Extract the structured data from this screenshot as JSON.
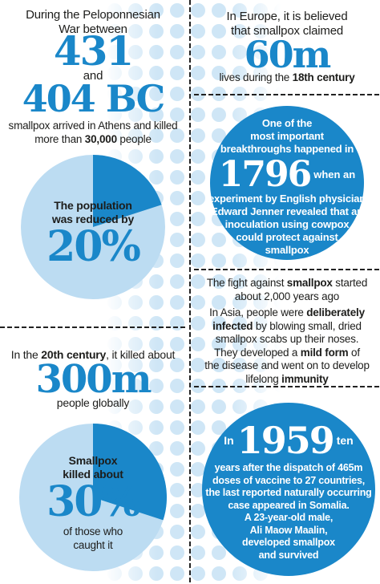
{
  "left": {
    "war_intro": [
      [
        "During the Peloponnesian"
      ],
      [
        "War between"
      ]
    ],
    "year1": "431",
    "and": "and",
    "year2": "404 BC",
    "athens": [
      [
        "smallpox arrived in Athens and killed"
      ],
      [
        "more than ",
        {
          "b": "30,000"
        },
        " people"
      ]
    ],
    "pie1": {
      "caption": [
        [
          "The population"
        ],
        [
          "was reduced by"
        ]
      ],
      "value": 20,
      "label": "20%"
    },
    "century": [
      [
        "In the ",
        {
          "b": "20th century"
        },
        ", it killed about"
      ]
    ],
    "big300": "300m",
    "globally": "people globally",
    "pie2": {
      "caption_top": [
        [
          "Smallpox"
        ],
        [
          "killed about"
        ]
      ],
      "value": 30,
      "label": "30%",
      "caption_bottom": [
        [
          "of those who"
        ],
        [
          "caught it"
        ]
      ]
    }
  },
  "right": {
    "europe": [
      [
        "In Europe, it is believed"
      ],
      [
        "that smallpox claimed"
      ]
    ],
    "big60": "60m",
    "lives": [
      [
        "lives during the ",
        {
          "b": "18th century"
        }
      ]
    ],
    "circle1": {
      "top": [
        [
          "One of the"
        ],
        [
          "most important"
        ],
        [
          {
            "b": "breakthroughs"
          },
          " happened in"
        ]
      ],
      "year": "1796",
      "year_after": "when an",
      "bottom": [
        [
          "experiment by English physician"
        ],
        [
          {
            "b": "Edward Jenner"
          },
          " revealed that an"
        ],
        [
          "inoculation using ",
          {
            "b": "cowpox"
          }
        ],
        [
          "could protect against"
        ],
        [
          {
            "b": "smallpox"
          }
        ]
      ]
    },
    "fight": [
      [
        "The fight against ",
        {
          "b": "smallpox"
        },
        " started"
      ],
      [
        "about 2,000 years ago"
      ]
    ],
    "asia": [
      [
        "In Asia, people were ",
        {
          "b": "deliberately"
        }
      ],
      [
        {
          "b": "infected"
        },
        " by blowing small, dried"
      ],
      [
        "smallpox scabs up their noses."
      ],
      [
        "They developed a ",
        {
          "b": "mild form"
        },
        " of"
      ],
      [
        "the disease and went on to develop"
      ],
      [
        "lifelong ",
        {
          "b": "immunity"
        }
      ]
    ],
    "circle2": {
      "year_before": "In",
      "year": "1959",
      "year_after": "ten",
      "lines": [
        [
          "years after the dispatch of 465m"
        ],
        [
          "doses of vaccine to 27 countries,"
        ],
        [
          "the last reported naturally occurring"
        ],
        [
          "case appeared in Somalia."
        ],
        [
          "A 23-year-old male,"
        ],
        [
          "Ali Maow Maalin,"
        ],
        [
          "developed smallpox"
        ],
        [
          "and survived"
        ]
      ]
    }
  }
}
